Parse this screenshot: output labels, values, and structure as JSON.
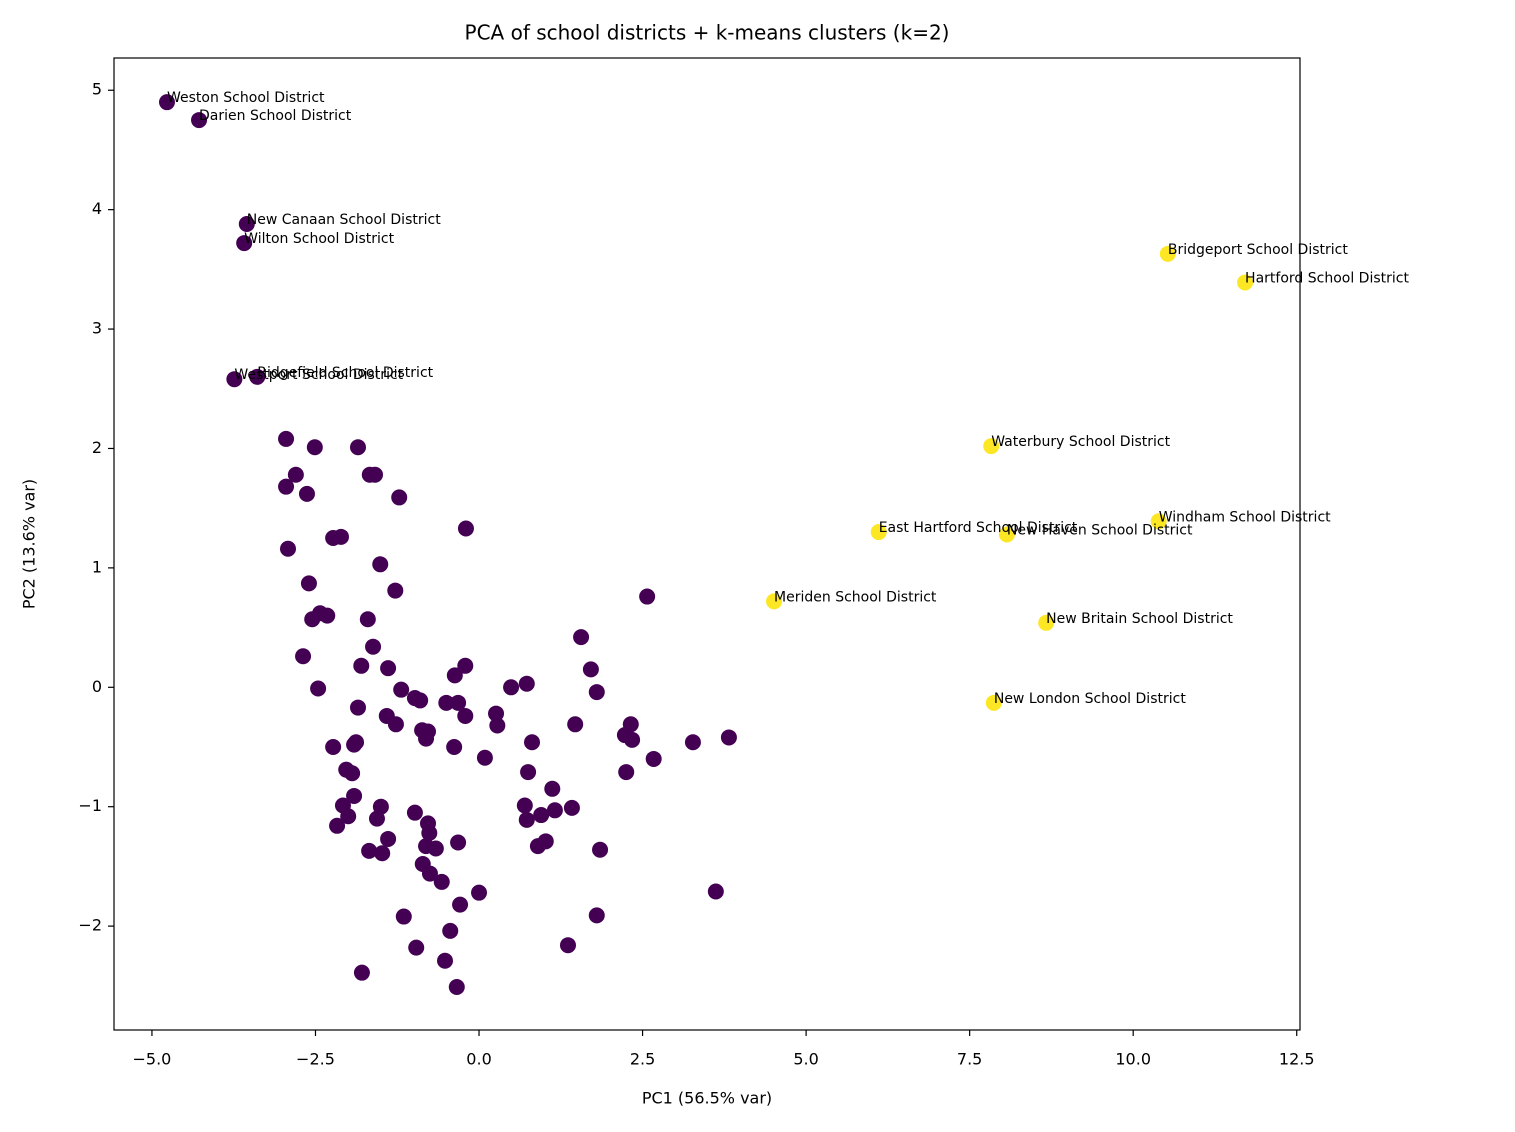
{
  "chart_data": {
    "type": "scatter",
    "title": "PCA of school districts + k-means clusters (k=2)",
    "x_label": "PC1 (56.5% var)",
    "y_label": "PC2 (13.6% var)",
    "xlim": [
      -5.58,
      12.55
    ],
    "ylim": [
      -2.87,
      5.27
    ],
    "xticks": [
      {
        "value": -5,
        "label": "−5.0"
      },
      {
        "value": -2.5,
        "label": "−2.5"
      },
      {
        "value": 0,
        "label": "0.0"
      },
      {
        "value": 2.5,
        "label": "2.5"
      },
      {
        "value": 5,
        "label": "5.0"
      },
      {
        "value": 7.5,
        "label": "7.5"
      },
      {
        "value": 10,
        "label": "10.0"
      },
      {
        "value": 12.5,
        "label": "12.5"
      }
    ],
    "yticks": [
      {
        "value": -2,
        "label": "−2"
      },
      {
        "value": -1,
        "label": "−1"
      },
      0,
      1,
      2,
      3,
      4,
      5
    ],
    "grid": false,
    "series": [
      {
        "color": "#440154",
        "points": [
          {
            "x": -4.77,
            "y": 4.9,
            "label": "Weston School District"
          },
          {
            "x": -4.28,
            "y": 4.75,
            "label": "Darien School District"
          },
          {
            "x": -3.55,
            "y": 3.88,
            "label": "New Canaan School District"
          },
          {
            "x": -3.59,
            "y": 3.72,
            "label": "Wilton School District"
          },
          {
            "x": -3.74,
            "y": 2.58,
            "label": "Westport School District"
          },
          {
            "x": -3.39,
            "y": 2.6,
            "label": "Ridgefield School District"
          },
          {
            "x": -2.95,
            "y": 2.08
          },
          {
            "x": -2.51,
            "y": 2.01
          },
          {
            "x": -1.85,
            "y": 2.01
          },
          {
            "x": -2.8,
            "y": 1.78
          },
          {
            "x": -1.67,
            "y": 1.78
          },
          {
            "x": -1.59,
            "y": 1.78
          },
          {
            "x": -2.95,
            "y": 1.68
          },
          {
            "x": -2.63,
            "y": 1.62
          },
          {
            "x": -1.22,
            "y": 1.59
          },
          {
            "x": -0.2,
            "y": 1.33
          },
          {
            "x": -2.11,
            "y": 1.26
          },
          {
            "x": -2.23,
            "y": 1.25
          },
          {
            "x": -2.92,
            "y": 1.16
          },
          {
            "x": -1.51,
            "y": 1.03
          },
          {
            "x": -2.6,
            "y": 0.87
          },
          {
            "x": -1.28,
            "y": 0.81
          },
          {
            "x": -2.43,
            "y": 0.62
          },
          {
            "x": -2.55,
            "y": 0.57
          },
          {
            "x": -2.32,
            "y": 0.6
          },
          {
            "x": -1.7,
            "y": 0.57
          },
          {
            "x": 2.57,
            "y": 0.76
          },
          {
            "x": 1.56,
            "y": 0.42
          },
          {
            "x": -1.62,
            "y": 0.34
          },
          {
            "x": -2.69,
            "y": 0.26
          },
          {
            "x": -1.8,
            "y": 0.18
          },
          {
            "x": -1.39,
            "y": 0.16
          },
          {
            "x": 1.71,
            "y": 0.15
          },
          {
            "x": -0.21,
            "y": 0.18
          },
          {
            "x": -0.37,
            "y": 0.1
          },
          {
            "x": -2.46,
            "y": -0.01
          },
          {
            "x": -1.19,
            "y": -0.02
          },
          {
            "x": 0.49,
            "y": 0
          },
          {
            "x": 0.73,
            "y": 0.03
          },
          {
            "x": 1.8,
            "y": -0.04
          },
          {
            "x": -0.98,
            "y": -0.09
          },
          {
            "x": -0.9,
            "y": -0.11
          },
          {
            "x": -0.5,
            "y": -0.13
          },
          {
            "x": -0.32,
            "y": -0.13
          },
          {
            "x": -1.85,
            "y": -0.17
          },
          {
            "x": -1.41,
            "y": -0.24
          },
          {
            "x": -0.21,
            "y": -0.24
          },
          {
            "x": 0.26,
            "y": -0.22
          },
          {
            "x": -1.27,
            "y": -0.31
          },
          {
            "x": 0.28,
            "y": -0.32
          },
          {
            "x": 1.47,
            "y": -0.31
          },
          {
            "x": 2.32,
            "y": -0.31
          },
          {
            "x": -0.87,
            "y": -0.36
          },
          {
            "x": -0.78,
            "y": -0.37
          },
          {
            "x": 2.23,
            "y": -0.4
          },
          {
            "x": 2.34,
            "y": -0.44
          },
          {
            "x": -0.81,
            "y": -0.43
          },
          {
            "x": -1.88,
            "y": -0.46
          },
          {
            "x": -1.91,
            "y": -0.48
          },
          {
            "x": -0.38,
            "y": -0.5
          },
          {
            "x": -2.23,
            "y": -0.5
          },
          {
            "x": 0.81,
            "y": -0.46
          },
          {
            "x": 3.27,
            "y": -0.46
          },
          {
            "x": 3.82,
            "y": -0.42
          },
          {
            "x": 0.09,
            "y": -0.59
          },
          {
            "x": 2.67,
            "y": -0.6
          },
          {
            "x": -2.03,
            "y": -0.69
          },
          {
            "x": -1.94,
            "y": -0.72
          },
          {
            "x": 0.75,
            "y": -0.71
          },
          {
            "x": 2.25,
            "y": -0.71
          },
          {
            "x": 1.12,
            "y": -0.85
          },
          {
            "x": -1.91,
            "y": -0.91
          },
          {
            "x": -2.08,
            "y": -0.99
          },
          {
            "x": -0.98,
            "y": -1.05
          },
          {
            "x": -1.5,
            "y": -1
          },
          {
            "x": 0.7,
            "y": -0.99
          },
          {
            "x": 1.16,
            "y": -1.03
          },
          {
            "x": 0.95,
            "y": -1.07
          },
          {
            "x": 1.42,
            "y": -1.01
          },
          {
            "x": -2,
            "y": -1.08
          },
          {
            "x": -1.56,
            "y": -1.1
          },
          {
            "x": -2.17,
            "y": -1.16
          },
          {
            "x": -0.78,
            "y": -1.14
          },
          {
            "x": 0.73,
            "y": -1.11
          },
          {
            "x": -0.76,
            "y": -1.22
          },
          {
            "x": -1.39,
            "y": -1.27
          },
          {
            "x": -0.32,
            "y": -1.3
          },
          {
            "x": 1.02,
            "y": -1.29
          },
          {
            "x": 0.9,
            "y": -1.33
          },
          {
            "x": -0.81,
            "y": -1.33
          },
          {
            "x": -0.66,
            "y": -1.35
          },
          {
            "x": 1.85,
            "y": -1.36
          },
          {
            "x": -1.68,
            "y": -1.37
          },
          {
            "x": -1.48,
            "y": -1.39
          },
          {
            "x": -0.86,
            "y": -1.48
          },
          {
            "x": -0.75,
            "y": -1.56
          },
          {
            "x": -0.57,
            "y": -1.63
          },
          {
            "x": 0,
            "y": -1.72
          },
          {
            "x": 3.62,
            "y": -1.71
          },
          {
            "x": -0.29,
            "y": -1.82
          },
          {
            "x": -1.15,
            "y": -1.92
          },
          {
            "x": 1.8,
            "y": -1.91
          },
          {
            "x": -0.44,
            "y": -2.04
          },
          {
            "x": -0.96,
            "y": -2.18
          },
          {
            "x": 1.36,
            "y": -2.16
          },
          {
            "x": -0.52,
            "y": -2.29
          },
          {
            "x": -1.79,
            "y": -2.39
          },
          {
            "x": -0.34,
            "y": -2.51
          }
        ]
      },
      {
        "color": "#fde725",
        "points": [
          {
            "x": 10.53,
            "y": 3.63,
            "label": "Bridgeport School District"
          },
          {
            "x": 11.71,
            "y": 3.39,
            "label": "Hartford School District"
          },
          {
            "x": 7.83,
            "y": 2.02,
            "label": "Waterbury School District"
          },
          {
            "x": 6.11,
            "y": 1.3,
            "label": "East Hartford School District"
          },
          {
            "x": 8.07,
            "y": 1.28,
            "label": "New Haven School District"
          },
          {
            "x": 10.39,
            "y": 1.39,
            "label": "Windham School District"
          },
          {
            "x": 4.51,
            "y": 0.72,
            "label": "Meriden School District"
          },
          {
            "x": 8.67,
            "y": 0.54,
            "label": "New Britain School District"
          },
          {
            "x": 7.87,
            "y": -0.13,
            "label": "New London School District"
          }
        ]
      }
    ]
  }
}
